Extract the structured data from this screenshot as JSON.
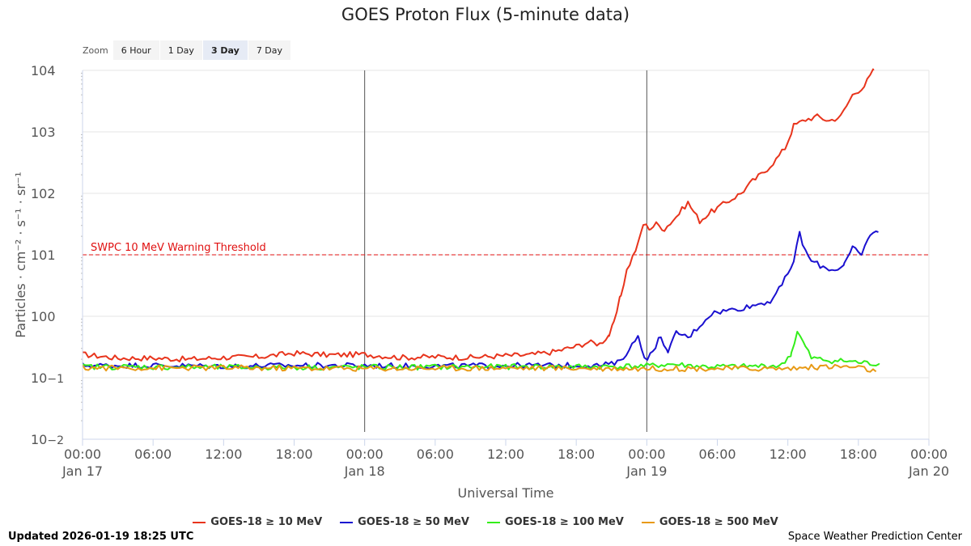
{
  "colors": {
    "s10": "#e8341c",
    "s50": "#1a10d0",
    "s100": "#33ee1a",
    "s500": "#e89a16",
    "threshold": "#e01010"
  },
  "zoom": {
    "label": "Zoom",
    "buttons": [
      "6 Hour",
      "1 Day",
      "3 Day",
      "7 Day"
    ],
    "selected": "3 Day"
  },
  "footer": {
    "updated": "Updated 2026-01-19 18:25 UTC",
    "credit": "Space Weather Prediction Center"
  },
  "chart_data": {
    "type": "line",
    "title": "GOES Proton Flux (5-minute data)",
    "xlabel": "Universal Time",
    "ylabel": "Particles · cm⁻² · s⁻¹ · sr⁻¹",
    "yscale": "log",
    "ylim_exp": [
      -2,
      4
    ],
    "y_ticks": [
      {
        "base": "10",
        "exp": "−2",
        "value": -2
      },
      {
        "base": "10",
        "exp": "−1",
        "value": -1
      },
      {
        "base": "100",
        "exp": "",
        "value": 0
      },
      {
        "base": "101",
        "exp": "",
        "value": 1
      },
      {
        "base": "102",
        "exp": "",
        "value": 2
      },
      {
        "base": "103",
        "exp": "",
        "value": 3
      },
      {
        "base": "104",
        "exp": "",
        "value": 4
      }
    ],
    "x_unit": "hours since 2026-01-17 00:00 UTC",
    "xlim": [
      0,
      72
    ],
    "x_ticks": [
      {
        "value": 0,
        "time": "00:00",
        "date": "Jan 17"
      },
      {
        "value": 6,
        "time": "06:00",
        "date": ""
      },
      {
        "value": 12,
        "time": "12:00",
        "date": ""
      },
      {
        "value": 18,
        "time": "18:00",
        "date": ""
      },
      {
        "value": 24,
        "time": "00:00",
        "date": "Jan 18"
      },
      {
        "value": 30,
        "time": "06:00",
        "date": ""
      },
      {
        "value": 36,
        "time": "12:00",
        "date": ""
      },
      {
        "value": 42,
        "time": "18:00",
        "date": ""
      },
      {
        "value": 48,
        "time": "00:00",
        "date": "Jan 19"
      },
      {
        "value": 54,
        "time": "06:00",
        "date": ""
      },
      {
        "value": 60,
        "time": "12:00",
        "date": ""
      },
      {
        "value": 66,
        "time": "18:00",
        "date": ""
      },
      {
        "value": 72,
        "time": "00:00",
        "date": "Jan 20"
      }
    ],
    "day_markers": [
      24,
      48
    ],
    "threshold": {
      "value": 10,
      "label": "SWPC 10 MeV Warning Threshold"
    },
    "series": [
      {
        "name": "GOES-18 ≥ 10 MeV",
        "color": "#e8341c",
        "log10_points": [
          [
            0,
            -0.62
          ],
          [
            3,
            -0.68
          ],
          [
            6,
            -0.68
          ],
          [
            9,
            -0.7
          ],
          [
            12,
            -0.67
          ],
          [
            15,
            -0.66
          ],
          [
            18,
            -0.6
          ],
          [
            21,
            -0.63
          ],
          [
            24,
            -0.62
          ],
          [
            27,
            -0.67
          ],
          [
            30,
            -0.66
          ],
          [
            33,
            -0.67
          ],
          [
            36,
            -0.64
          ],
          [
            38,
            -0.63
          ],
          [
            40,
            -0.58
          ],
          [
            42,
            -0.49
          ],
          [
            43,
            -0.42
          ],
          [
            44,
            -0.45
          ],
          [
            44.8,
            -0.3
          ],
          [
            45.2,
            -0.12
          ],
          [
            45.8,
            0.35
          ],
          [
            46.3,
            0.75
          ],
          [
            46.8,
            0.97
          ],
          [
            47.3,
            1.2
          ],
          [
            47.7,
            1.5
          ],
          [
            48.3,
            1.43
          ],
          [
            48.8,
            1.5
          ],
          [
            49.5,
            1.42
          ],
          [
            50.5,
            1.62
          ],
          [
            51.5,
            1.85
          ],
          [
            52.5,
            1.55
          ],
          [
            53.5,
            1.7
          ],
          [
            55,
            1.88
          ],
          [
            56,
            2.0
          ],
          [
            57,
            2.2
          ],
          [
            58,
            2.35
          ],
          [
            59,
            2.55
          ],
          [
            59.8,
            2.75
          ],
          [
            60.5,
            3.1
          ],
          [
            61.5,
            3.2
          ],
          [
            62.5,
            3.25
          ],
          [
            63.5,
            3.18
          ],
          [
            64.5,
            3.25
          ],
          [
            65.5,
            3.6
          ],
          [
            66.5,
            3.75
          ],
          [
            67.3,
            4.0
          ]
        ]
      },
      {
        "name": "GOES-18 ≥ 50 MeV",
        "color": "#1a10d0",
        "log10_points": [
          [
            0,
            -0.8
          ],
          [
            6,
            -0.8
          ],
          [
            12,
            -0.81
          ],
          [
            18,
            -0.8
          ],
          [
            24,
            -0.8
          ],
          [
            30,
            -0.81
          ],
          [
            36,
            -0.8
          ],
          [
            40,
            -0.8
          ],
          [
            44,
            -0.8
          ],
          [
            45.5,
            -0.76
          ],
          [
            46.5,
            -0.55
          ],
          [
            47.3,
            -0.3
          ],
          [
            47.8,
            -0.7
          ],
          [
            48.5,
            -0.6
          ],
          [
            49.2,
            -0.3
          ],
          [
            49.8,
            -0.62
          ],
          [
            50.5,
            -0.25
          ],
          [
            51.5,
            -0.35
          ],
          [
            52.5,
            -0.15
          ],
          [
            53.5,
            0.05
          ],
          [
            55,
            0.1
          ],
          [
            56.5,
            0.15
          ],
          [
            57.5,
            0.2
          ],
          [
            58.5,
            0.25
          ],
          [
            59.5,
            0.5
          ],
          [
            60.5,
            0.9
          ],
          [
            61,
            1.35
          ],
          [
            61.5,
            1.05
          ],
          [
            62,
            0.9
          ],
          [
            63,
            0.8
          ],
          [
            64,
            0.75
          ],
          [
            64.8,
            0.85
          ],
          [
            65.5,
            1.1
          ],
          [
            66.3,
            1.0
          ],
          [
            67,
            1.35
          ],
          [
            67.7,
            1.37
          ]
        ]
      },
      {
        "name": "GOES-18 ≥ 100 MeV",
        "color": "#33ee1a",
        "log10_points": [
          [
            0,
            -0.82
          ],
          [
            12,
            -0.83
          ],
          [
            24,
            -0.83
          ],
          [
            36,
            -0.82
          ],
          [
            44,
            -0.82
          ],
          [
            48,
            -0.81
          ],
          [
            50,
            -0.78
          ],
          [
            53,
            -0.82
          ],
          [
            56,
            -0.82
          ],
          [
            59.5,
            -0.8
          ],
          [
            60.3,
            -0.6
          ],
          [
            60.8,
            -0.25
          ],
          [
            61.5,
            -0.5
          ],
          [
            62,
            -0.68
          ],
          [
            63.5,
            -0.72
          ],
          [
            65,
            -0.73
          ],
          [
            66.5,
            -0.76
          ],
          [
            67.8,
            -0.78
          ]
        ]
      },
      {
        "name": "GOES-18 ≥ 500 MeV",
        "color": "#e89a16",
        "log10_points": [
          [
            0,
            -0.84
          ],
          [
            12,
            -0.84
          ],
          [
            24,
            -0.85
          ],
          [
            36,
            -0.84
          ],
          [
            48,
            -0.85
          ],
          [
            54,
            -0.85
          ],
          [
            60,
            -0.85
          ],
          [
            63,
            -0.82
          ],
          [
            65,
            -0.82
          ],
          [
            66.5,
            -0.85
          ],
          [
            67.5,
            -0.9
          ]
        ]
      }
    ]
  }
}
